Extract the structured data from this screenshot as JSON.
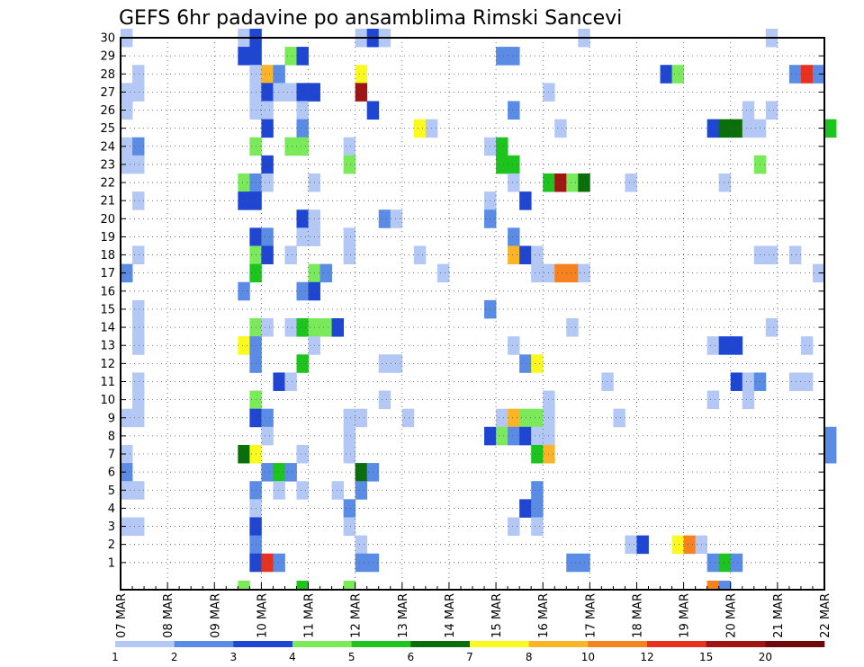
{
  "chart_data": {
    "type": "heatmap",
    "title": "GEFS 6hr padavine po ansamblima Rimski Sancevi",
    "xlabel": "",
    "ylabel": "",
    "x_ticks": [
      "07 MAR",
      "08 MAR",
      "09 MAR",
      "10 MAR",
      "11 MAR",
      "12 MAR",
      "13 MAR",
      "14 MAR",
      "15 MAR",
      "16 MAR",
      "17 MAR",
      "18 MAR",
      "19 MAR",
      "20 MAR",
      "21 MAR",
      "22 MAR"
    ],
    "x_range_days": [
      0,
      15
    ],
    "y_ticks": [
      1,
      2,
      3,
      4,
      5,
      6,
      7,
      8,
      9,
      10,
      11,
      12,
      13,
      14,
      15,
      16,
      17,
      18,
      19,
      20,
      21,
      22,
      23,
      24,
      25,
      26,
      27,
      28,
      29,
      30
    ],
    "y_range": [
      0,
      30
    ],
    "grid": true,
    "grid_style": "dotted",
    "legend_position": "bottom",
    "levels": [
      1,
      2,
      3,
      4,
      5,
      6,
      7,
      8,
      10,
      12,
      15,
      20
    ],
    "colors": [
      "#b4c8f5",
      "#5a8ce6",
      "#1e46d2",
      "#7aea5a",
      "#1ec41e",
      "#0a6e0a",
      "#fafa1e",
      "#fab428",
      "#f5821e",
      "#e6321e",
      "#a01414",
      "#6e0a0a"
    ],
    "cells_note": "each cell: [member, step (6-hourly, 0 = 07 MAR 00Z), class index into colors]",
    "cells": [
      [
        30,
        0,
        0
      ],
      [
        30,
        10,
        0
      ],
      [
        30,
        11,
        2
      ],
      [
        30,
        20,
        0
      ],
      [
        30,
        21,
        2
      ],
      [
        30,
        22,
        0
      ],
      [
        30,
        39,
        0
      ],
      [
        30,
        55,
        0
      ],
      [
        29,
        10,
        2
      ],
      [
        29,
        11,
        2
      ],
      [
        29,
        14,
        3
      ],
      [
        29,
        15,
        2
      ],
      [
        29,
        32,
        1
      ],
      [
        29,
        33,
        1
      ],
      [
        28,
        1,
        0
      ],
      [
        28,
        11,
        0
      ],
      [
        28,
        12,
        7
      ],
      [
        28,
        13,
        1
      ],
      [
        28,
        20,
        6
      ],
      [
        28,
        46,
        2
      ],
      [
        28,
        47,
        3
      ],
      [
        28,
        57,
        1
      ],
      [
        28,
        58,
        9
      ],
      [
        28,
        59,
        1
      ],
      [
        27,
        0,
        0
      ],
      [
        27,
        1,
        0
      ],
      [
        27,
        11,
        0
      ],
      [
        27,
        12,
        2
      ],
      [
        27,
        13,
        0
      ],
      [
        27,
        14,
        0
      ],
      [
        27,
        15,
        2
      ],
      [
        27,
        16,
        2
      ],
      [
        27,
        20,
        10
      ],
      [
        27,
        36,
        0
      ],
      [
        26,
        0,
        0
      ],
      [
        26,
        11,
        0
      ],
      [
        26,
        12,
        0
      ],
      [
        26,
        15,
        0
      ],
      [
        26,
        21,
        2
      ],
      [
        26,
        33,
        1
      ],
      [
        26,
        53,
        0
      ],
      [
        26,
        55,
        0
      ],
      [
        25,
        12,
        2
      ],
      [
        25,
        15,
        1
      ],
      [
        25,
        25,
        6
      ],
      [
        25,
        26,
        0
      ],
      [
        25,
        37,
        0
      ],
      [
        25,
        50,
        2
      ],
      [
        25,
        51,
        5
      ],
      [
        25,
        52,
        5
      ],
      [
        25,
        53,
        0
      ],
      [
        25,
        54,
        0
      ],
      [
        25,
        60,
        4
      ],
      [
        24,
        0,
        0
      ],
      [
        24,
        1,
        1
      ],
      [
        24,
        11,
        3
      ],
      [
        24,
        14,
        3
      ],
      [
        24,
        15,
        3
      ],
      [
        24,
        19,
        0
      ],
      [
        24,
        31,
        0
      ],
      [
        24,
        32,
        4
      ],
      [
        23,
        0,
        0
      ],
      [
        23,
        1,
        0
      ],
      [
        23,
        12,
        2
      ],
      [
        23,
        19,
        3
      ],
      [
        23,
        32,
        4
      ],
      [
        23,
        33,
        4
      ],
      [
        23,
        54,
        3
      ],
      [
        22,
        10,
        3
      ],
      [
        22,
        11,
        1
      ],
      [
        22,
        12,
        0
      ],
      [
        22,
        16,
        0
      ],
      [
        22,
        33,
        0
      ],
      [
        22,
        36,
        4
      ],
      [
        22,
        37,
        10
      ],
      [
        22,
        38,
        3
      ],
      [
        22,
        39,
        5
      ],
      [
        22,
        43,
        0
      ],
      [
        22,
        51,
        0
      ],
      [
        21,
        1,
        0
      ],
      [
        21,
        10,
        2
      ],
      [
        21,
        11,
        2
      ],
      [
        21,
        31,
        0
      ],
      [
        21,
        34,
        2
      ],
      [
        20,
        15,
        2
      ],
      [
        20,
        16,
        0
      ],
      [
        20,
        22,
        1
      ],
      [
        20,
        23,
        0
      ],
      [
        20,
        31,
        1
      ],
      [
        19,
        11,
        2
      ],
      [
        19,
        12,
        1
      ],
      [
        19,
        15,
        0
      ],
      [
        19,
        16,
        0
      ],
      [
        19,
        19,
        0
      ],
      [
        19,
        33,
        1
      ],
      [
        18,
        1,
        0
      ],
      [
        18,
        11,
        3
      ],
      [
        18,
        12,
        2
      ],
      [
        18,
        14,
        0
      ],
      [
        18,
        19,
        0
      ],
      [
        18,
        25,
        0
      ],
      [
        18,
        33,
        7
      ],
      [
        18,
        34,
        2
      ],
      [
        18,
        35,
        0
      ],
      [
        18,
        54,
        0
      ],
      [
        18,
        55,
        0
      ],
      [
        18,
        57,
        0
      ],
      [
        17,
        0,
        1
      ],
      [
        17,
        11,
        4
      ],
      [
        17,
        16,
        3
      ],
      [
        17,
        17,
        1
      ],
      [
        17,
        27,
        0
      ],
      [
        17,
        35,
        0
      ],
      [
        17,
        36,
        0
      ],
      [
        17,
        37,
        8
      ],
      [
        17,
        38,
        8
      ],
      [
        17,
        39,
        0
      ],
      [
        17,
        59,
        0
      ],
      [
        16,
        10,
        1
      ],
      [
        16,
        15,
        1
      ],
      [
        16,
        16,
        2
      ],
      [
        15,
        1,
        0
      ],
      [
        15,
        31,
        1
      ],
      [
        14,
        1,
        0
      ],
      [
        14,
        11,
        3
      ],
      [
        14,
        12,
        0
      ],
      [
        14,
        14,
        0
      ],
      [
        14,
        15,
        4
      ],
      [
        14,
        16,
        3
      ],
      [
        14,
        17,
        3
      ],
      [
        14,
        18,
        2
      ],
      [
        14,
        38,
        0
      ],
      [
        14,
        55,
        0
      ],
      [
        13,
        1,
        0
      ],
      [
        13,
        10,
        6
      ],
      [
        13,
        11,
        1
      ],
      [
        13,
        16,
        0
      ],
      [
        13,
        33,
        0
      ],
      [
        13,
        50,
        0
      ],
      [
        13,
        51,
        2
      ],
      [
        13,
        52,
        2
      ],
      [
        13,
        58,
        0
      ],
      [
        12,
        11,
        1
      ],
      [
        12,
        15,
        4
      ],
      [
        12,
        22,
        0
      ],
      [
        12,
        23,
        0
      ],
      [
        12,
        34,
        1
      ],
      [
        12,
        35,
        6
      ],
      [
        11,
        1,
        0
      ],
      [
        11,
        13,
        2
      ],
      [
        11,
        14,
        0
      ],
      [
        11,
        41,
        0
      ],
      [
        11,
        52,
        2
      ],
      [
        11,
        53,
        0
      ],
      [
        11,
        54,
        1
      ],
      [
        11,
        57,
        0
      ],
      [
        11,
        58,
        0
      ],
      [
        10,
        1,
        0
      ],
      [
        10,
        11,
        3
      ],
      [
        10,
        22,
        0
      ],
      [
        10,
        36,
        0
      ],
      [
        10,
        50,
        0
      ],
      [
        10,
        53,
        0
      ],
      [
        9,
        0,
        0
      ],
      [
        9,
        1,
        0
      ],
      [
        9,
        11,
        2
      ],
      [
        9,
        12,
        1
      ],
      [
        9,
        19,
        0
      ],
      [
        9,
        20,
        0
      ],
      [
        9,
        24,
        0
      ],
      [
        9,
        32,
        0
      ],
      [
        9,
        33,
        7
      ],
      [
        9,
        34,
        3
      ],
      [
        9,
        35,
        3
      ],
      [
        9,
        36,
        0
      ],
      [
        9,
        42,
        0
      ],
      [
        8,
        12,
        0
      ],
      [
        8,
        19,
        0
      ],
      [
        8,
        31,
        2
      ],
      [
        8,
        32,
        3
      ],
      [
        8,
        33,
        1
      ],
      [
        8,
        34,
        2
      ],
      [
        8,
        35,
        0
      ],
      [
        8,
        36,
        0
      ],
      [
        8,
        60,
        1
      ],
      [
        7,
        0,
        0
      ],
      [
        7,
        10,
        5
      ],
      [
        7,
        11,
        6
      ],
      [
        7,
        15,
        0
      ],
      [
        7,
        19,
        0
      ],
      [
        7,
        35,
        4
      ],
      [
        7,
        36,
        7
      ],
      [
        7,
        60,
        1
      ],
      [
        6,
        0,
        1
      ],
      [
        6,
        12,
        1
      ],
      [
        6,
        13,
        4
      ],
      [
        6,
        14,
        1
      ],
      [
        6,
        20,
        5
      ],
      [
        6,
        21,
        1
      ],
      [
        5,
        0,
        0
      ],
      [
        5,
        1,
        0
      ],
      [
        5,
        11,
        1
      ],
      [
        5,
        13,
        0
      ],
      [
        5,
        15,
        0
      ],
      [
        5,
        18,
        0
      ],
      [
        5,
        20,
        1
      ],
      [
        5,
        35,
        1
      ],
      [
        4,
        11,
        0
      ],
      [
        4,
        19,
        1
      ],
      [
        4,
        34,
        2
      ],
      [
        4,
        35,
        1
      ],
      [
        3,
        0,
        0
      ],
      [
        3,
        1,
        0
      ],
      [
        3,
        11,
        2
      ],
      [
        3,
        19,
        0
      ],
      [
        3,
        33,
        0
      ],
      [
        3,
        35,
        0
      ],
      [
        2,
        11,
        1
      ],
      [
        2,
        20,
        0
      ],
      [
        2,
        43,
        0
      ],
      [
        2,
        44,
        2
      ],
      [
        2,
        47,
        6
      ],
      [
        2,
        48,
        8
      ],
      [
        2,
        49,
        0
      ],
      [
        1,
        11,
        2
      ],
      [
        1,
        12,
        9
      ],
      [
        1,
        13,
        1
      ],
      [
        1,
        20,
        1
      ],
      [
        1,
        21,
        1
      ],
      [
        1,
        38,
        1
      ],
      [
        1,
        39,
        1
      ],
      [
        1,
        50,
        1
      ],
      [
        1,
        51,
        4
      ],
      [
        1,
        52,
        1
      ],
      [
        0,
        10,
        3
      ],
      [
        0,
        15,
        4
      ],
      [
        0,
        19,
        3
      ],
      [
        0,
        50,
        8
      ],
      [
        0,
        51,
        1
      ]
    ]
  }
}
